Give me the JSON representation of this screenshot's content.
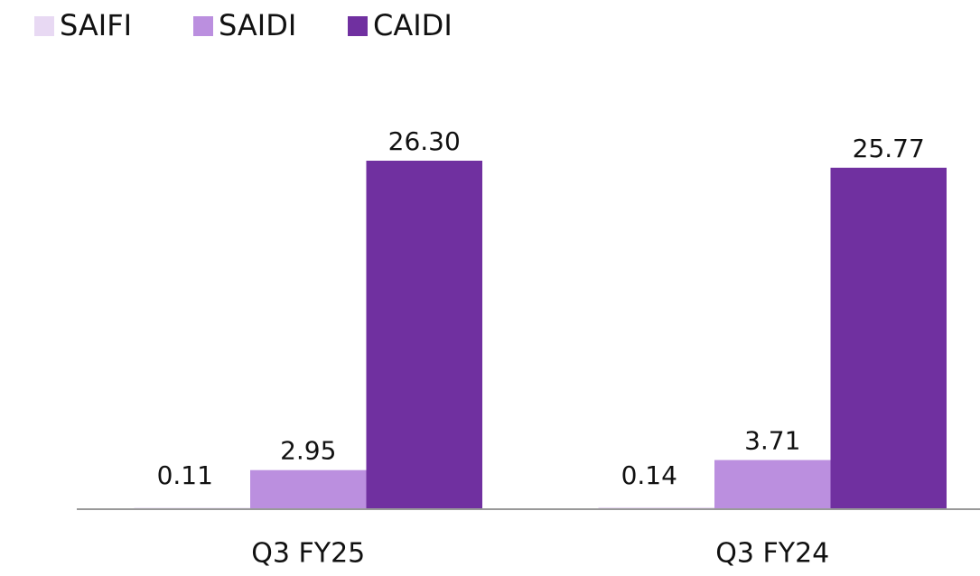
{
  "chart_data": {
    "type": "bar",
    "categories": [
      "Q3 FY25",
      "Q3 FY24"
    ],
    "series": [
      {
        "name": "SAIFI",
        "color": "#e8d9f3",
        "values": [
          0.11,
          0.14
        ],
        "value_labels": [
          "0.11",
          "0.14"
        ]
      },
      {
        "name": "SAIDI",
        "color": "#bb8fdf",
        "values": [
          2.95,
          3.71
        ],
        "value_labels": [
          "2.95",
          "3.71"
        ]
      },
      {
        "name": "CAIDI",
        "color": "#7030a0",
        "values": [
          26.3,
          25.77
        ],
        "value_labels": [
          "26.30",
          "25.77"
        ]
      }
    ]
  }
}
